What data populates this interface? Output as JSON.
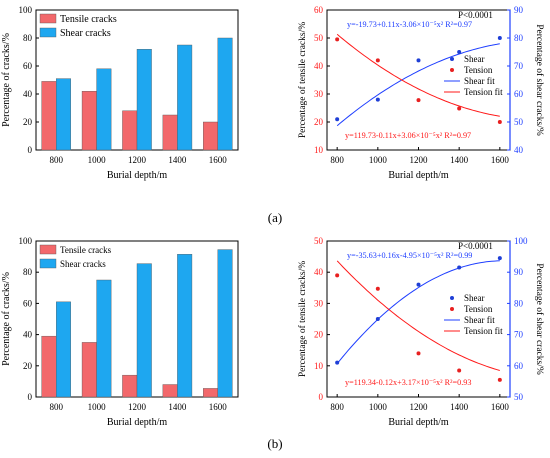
{
  "panel_labels": [
    "(a)",
    "(b)"
  ],
  "colors": {
    "tensile_bar": "#f2686b",
    "shear_bar": "#1ea7f0",
    "shear_fit": "#1f3fff",
    "shear_point": "#1f3fd6",
    "tension_fit": "#ff1a1a",
    "tension_point": "#e82020",
    "axis": "#000000",
    "right_axis": "#1f3fff"
  },
  "chart_data": [
    {
      "type": "bar",
      "panel": "a",
      "categories": [
        "800",
        "1000",
        "1200",
        "1400",
        "1600"
      ],
      "series": [
        {
          "name": "Tensile cracks",
          "values": [
            49,
            42,
            28,
            25,
            20
          ]
        },
        {
          "name": "Shear cracks",
          "values": [
            51,
            58,
            72,
            75,
            80
          ]
        }
      ],
      "xlabel": "Burial depth/m",
      "ylabel": "Percentage of cracks/%",
      "ylim": [
        0,
        100
      ],
      "yticks": [
        0,
        20,
        40,
        60,
        80,
        100
      ],
      "legend": "top-left"
    },
    {
      "type": "scatter",
      "panel": "a",
      "x": [
        800,
        1000,
        1200,
        1400,
        1600
      ],
      "series": [
        {
          "name": "Shear",
          "axis": "right",
          "values": [
            51,
            58,
            72,
            75,
            80
          ]
        },
        {
          "name": "Tension",
          "axis": "left",
          "values": [
            49.5,
            42,
            27.8,
            24.8,
            20
          ]
        }
      ],
      "fits": [
        {
          "name": "Shear fit",
          "axis": "right",
          "c0": -19.73,
          "c1": 0.11,
          "c2": -3.06e-05,
          "equation": "y=-19.73+0.11x-3.06×10⁻⁵x²",
          "r2": "R²=0.97"
        },
        {
          "name": "Tension fit",
          "axis": "left",
          "c0": 119.73,
          "c1": -0.11,
          "c2": 3.06e-05,
          "equation": "y=119.73-0.11x+3.06×10⁻⁵x²",
          "r2": "R²=0.97"
        }
      ],
      "annotation": "P<0.0001",
      "xlabel": "Burial depth/m",
      "ylabel": "Percentage of tensile cracks/%",
      "y2label": "Percentage of shear cracks/%",
      "xlim": [
        750,
        1650
      ],
      "xticks": [
        800,
        1000,
        1200,
        1400,
        1600
      ],
      "ylim": [
        10,
        60
      ],
      "yticks": [
        10,
        20,
        30,
        40,
        50,
        60
      ],
      "y2lim": [
        40,
        90
      ],
      "y2ticks": [
        40,
        50,
        60,
        70,
        80,
        90
      ],
      "legend": "right"
    },
    {
      "type": "bar",
      "panel": "b",
      "categories": [
        "800",
        "1000",
        "1200",
        "1400",
        "1600"
      ],
      "series": [
        {
          "name": "Tensile cracks",
          "values": [
            39,
            35,
            14,
            8,
            5.5
          ]
        },
        {
          "name": "Shear cracks",
          "values": [
            61,
            75,
            85.5,
            91.5,
            94.5
          ]
        }
      ],
      "xlabel": "Burial depth/m",
      "ylabel": "Percentage of cracks/%",
      "ylim": [
        0,
        100
      ],
      "yticks": [
        0,
        20,
        40,
        60,
        80,
        100
      ],
      "legend": "top-left"
    },
    {
      "type": "scatter",
      "panel": "b",
      "x": [
        800,
        1000,
        1200,
        1400,
        1600
      ],
      "series": [
        {
          "name": "Shear",
          "axis": "right",
          "values": [
            61,
            75,
            86,
            91.5,
            94.5
          ]
        },
        {
          "name": "Tension",
          "axis": "left",
          "values": [
            39,
            34.7,
            14,
            8.5,
            5.5
          ]
        }
      ],
      "fits": [
        {
          "name": "Shear fit",
          "axis": "right",
          "c0": -35.63,
          "c1": 0.16,
          "c2": -4.95e-05,
          "equation": "y=-35.63+0.16x-4.95×10⁻⁵x²",
          "r2": "R²=0.99"
        },
        {
          "name": "Tension fit",
          "axis": "left",
          "c0": 119.34,
          "c1": -0.12,
          "c2": 3.17e-05,
          "equation": "y=119.34-0.12x+3.17×10⁻⁵x²",
          "r2": "R²=0.93"
        }
      ],
      "annotation": "P<0.0001",
      "xlabel": "Burial depth/m",
      "ylabel": "Percentage of tensile cracks/%",
      "y2label": "Percentage of shear cracks/%",
      "xlim": [
        750,
        1650
      ],
      "xticks": [
        800,
        1000,
        1200,
        1400,
        1600
      ],
      "ylim": [
        0,
        50
      ],
      "yticks": [
        0,
        10,
        20,
        30,
        40,
        50
      ],
      "y2lim": [
        50,
        100
      ],
      "y2ticks": [
        50,
        60,
        70,
        80,
        90,
        100
      ],
      "legend": "right"
    }
  ]
}
